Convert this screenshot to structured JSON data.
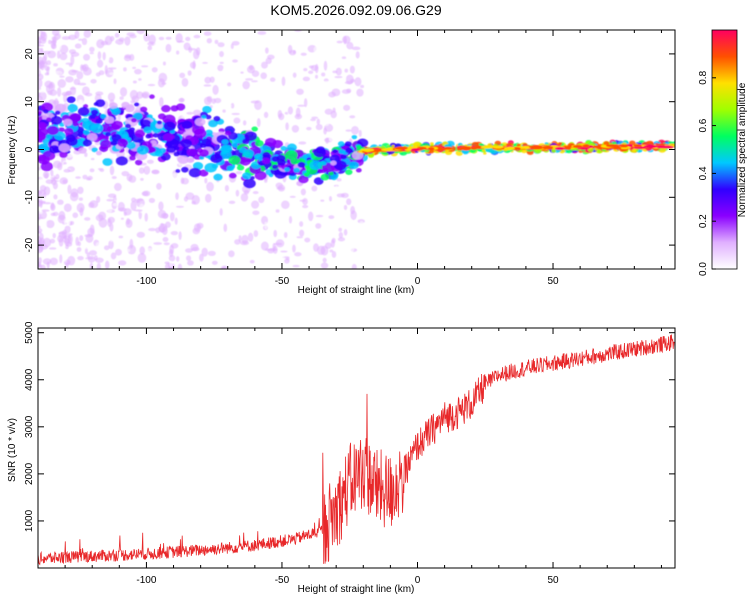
{
  "figure": {
    "title": "KOM5.2026.092.09.06.G29"
  },
  "chart_data": [
    {
      "type": "heatmap",
      "title": "KOM5.2026.092.09.06.G29",
      "xlabel": "Height of straight line (km)",
      "ylabel": "Frequency (Hz)",
      "xlim": [
        -140,
        95
      ],
      "ylim": [
        -25,
        25
      ],
      "x_ticks": [
        -100,
        -50,
        0,
        50
      ],
      "y_ticks": [
        -20,
        -10,
        0,
        10,
        20
      ],
      "colorbar": {
        "label": "Normalized spectral amplitude",
        "range": [
          0,
          1
        ],
        "ticks": [
          0.0,
          0.2,
          0.4,
          0.6,
          0.8
        ],
        "colors": [
          "#ffffff",
          "#e0b0ff",
          "#8a00ff",
          "#3000ff",
          "#00c8ff",
          "#00ff60",
          "#a0ff00",
          "#ffe000",
          "#ff5000",
          "#ff0060"
        ]
      },
      "ridge": {
        "name": "",
        "x": [
          -140,
          -120,
          -100,
          -80,
          -60,
          -45,
          -35,
          -25,
          -15,
          0,
          10,
          20,
          40,
          60,
          80,
          95
        ],
        "y": [
          4,
          4,
          4,
          1.5,
          -1.5,
          -3,
          -3.5,
          -1,
          0,
          0.2,
          0.3,
          0.3,
          0.4,
          0.5,
          0.6,
          0.8
        ]
      },
      "grid": false,
      "legend": "colorbar-right"
    },
    {
      "type": "line",
      "xlabel": "Height of straight line (km)",
      "ylabel": "SNR (10 * v/v)",
      "xlim": [
        -140,
        95
      ],
      "ylim": [
        0,
        5100
      ],
      "x_ticks": [
        -100,
        -50,
        0,
        50
      ],
      "y_ticks": [
        1000,
        2000,
        3000,
        4000,
        5000
      ],
      "series": [
        {
          "name": "",
          "color": "#e8282a",
          "x": [
            -140,
            -120,
            -100,
            -80,
            -60,
            -45,
            -35,
            -30,
            -25,
            -20,
            -15,
            -10,
            -5,
            0,
            5,
            10,
            15,
            20,
            25,
            30,
            40,
            50,
            60,
            70,
            80,
            90,
            95
          ],
          "y": [
            200,
            250,
            300,
            380,
            480,
            620,
            800,
            1200,
            1800,
            2100,
            1700,
            1600,
            2000,
            2600,
            2900,
            3200,
            3300,
            3500,
            3900,
            4100,
            4250,
            4350,
            4450,
            4550,
            4650,
            4750,
            4800
          ]
        }
      ],
      "grid": false,
      "legend": "none"
    }
  ]
}
